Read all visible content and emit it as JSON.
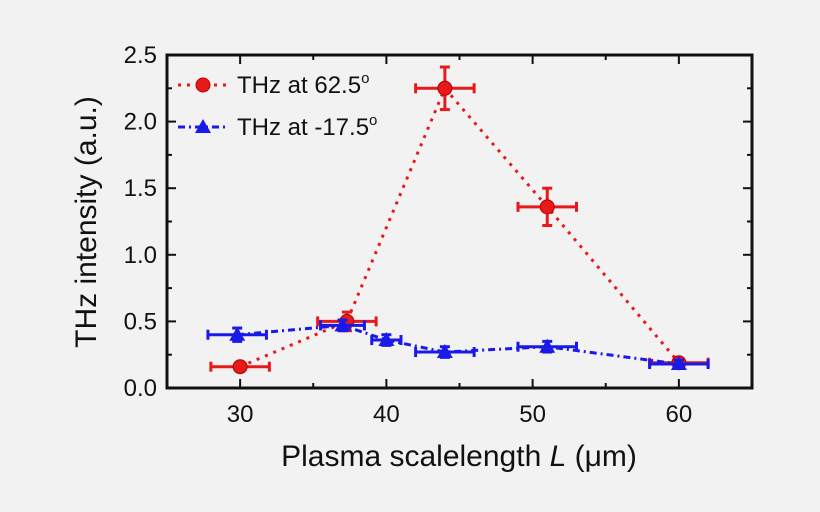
{
  "chart_data": {
    "type": "scatter",
    "xlabel": {
      "main": "Plasma scalelength ",
      "var": "L",
      "unit": " (μm)"
    },
    "ylabel": "THz intensity (a.u.)",
    "xlim": [
      25,
      65
    ],
    "ylim": [
      0,
      2.5
    ],
    "xticks": [
      30,
      40,
      50,
      60
    ],
    "yticks": [
      0.0,
      0.5,
      1.0,
      1.5,
      2.0,
      2.5
    ],
    "ytick_labels": [
      "0.0",
      "0.5",
      "1.0",
      "1.5",
      "2.0",
      "2.5"
    ],
    "grid": false,
    "legend_position": "top-left",
    "series": [
      {
        "name": "THz at 62.5",
        "superscript": "o",
        "color": "#e8191a",
        "marker": "circle",
        "line": "dotted",
        "points": [
          {
            "x": 30.0,
            "y": 0.16,
            "xerr": 2.0,
            "yerr": 0.02
          },
          {
            "x": 37.3,
            "y": 0.5,
            "xerr": 2.0,
            "yerr": 0.07
          },
          {
            "x": 44.0,
            "y": 2.25,
            "xerr": 2.0,
            "yerr": 0.16
          },
          {
            "x": 51.0,
            "y": 1.36,
            "xerr": 2.0,
            "yerr": 0.14
          },
          {
            "x": 60.0,
            "y": 0.19,
            "xerr": 2.0,
            "yerr": 0.03
          }
        ]
      },
      {
        "name": "THz at -17.5",
        "superscript": "o",
        "color": "#1a1ae8",
        "marker": "triangle",
        "line": "dash-dot",
        "points": [
          {
            "x": 29.8,
            "y": 0.4,
            "xerr": 2.0,
            "yerr": 0.05
          },
          {
            "x": 37.0,
            "y": 0.47,
            "xerr": 1.5,
            "yerr": 0.04
          },
          {
            "x": 40.0,
            "y": 0.36,
            "xerr": 1.0,
            "yerr": 0.04
          },
          {
            "x": 44.0,
            "y": 0.27,
            "xerr": 2.0,
            "yerr": 0.04
          },
          {
            "x": 51.0,
            "y": 0.31,
            "xerr": 2.0,
            "yerr": 0.04
          },
          {
            "x": 60.0,
            "y": 0.18,
            "xerr": 2.0,
            "yerr": 0.03
          }
        ]
      }
    ]
  }
}
